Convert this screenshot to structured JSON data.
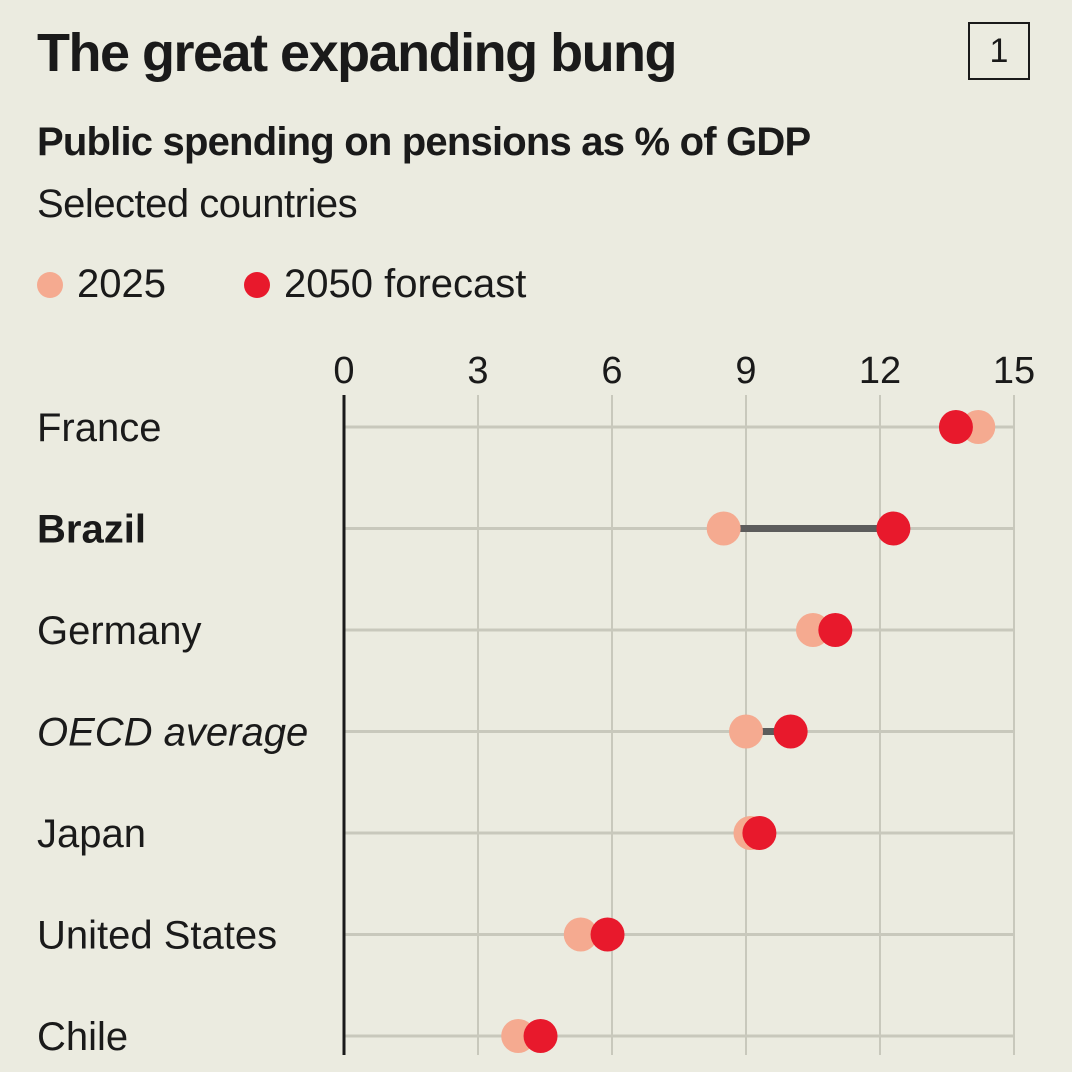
{
  "header": {
    "title": "The great expanding bung",
    "badge": "1",
    "subtitle": "Public spending on pensions as % of GDP",
    "description": "Selected countries"
  },
  "legend": [
    {
      "label": "2025",
      "color": "#f5aa90"
    },
    {
      "label": "2050 forecast",
      "color": "#e8192c"
    }
  ],
  "chart_data": {
    "type": "scatter",
    "subtype": "dumbbell",
    "title": "The great expanding bung",
    "subtitle": "Public spending on pensions as % of GDP",
    "xlabel": "",
    "ylabel": "",
    "xlim": [
      0,
      15
    ],
    "xticks": [
      0,
      3,
      6,
      9,
      12,
      15
    ],
    "grid": true,
    "legend_position": "top-left",
    "categories": [
      "France",
      "Brazil",
      "Germany",
      "OECD average",
      "Japan",
      "United States",
      "Chile"
    ],
    "category_styles": [
      "normal",
      "bold",
      "normal",
      "italic",
      "normal",
      "normal",
      "normal"
    ],
    "series": [
      {
        "name": "2025",
        "color": "#f5aa90",
        "values": [
          14.2,
          8.5,
          10.5,
          9.0,
          9.1,
          5.3,
          3.9
        ]
      },
      {
        "name": "2050 forecast",
        "color": "#e8192c",
        "values": [
          13.7,
          12.3,
          11.0,
          10.0,
          9.3,
          5.9,
          4.4
        ]
      }
    ]
  }
}
